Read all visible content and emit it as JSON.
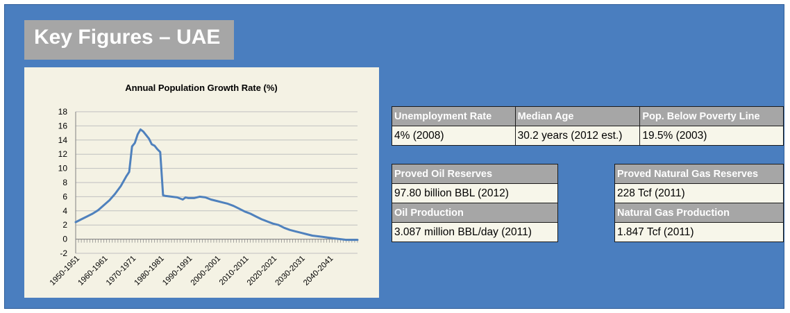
{
  "title": "Key Figures – UAE",
  "chart_data": {
    "type": "line",
    "title": "Annual Population Growth Rate (%)",
    "xlabel": "",
    "ylabel": "",
    "ylim": [
      -2,
      18
    ],
    "yticks": [
      -2,
      0,
      2,
      4,
      6,
      8,
      10,
      12,
      14,
      16,
      18
    ],
    "x_tick_labels": [
      "1950-1951",
      "1960-1961",
      "1970-1971",
      "1980-1981",
      "1990-1991",
      "2000-2001",
      "2010-2011",
      "2020-2021",
      "2030-2031",
      "2040-2041"
    ],
    "grid": true,
    "legend": "none",
    "line_color": "#4f81bd",
    "x_start_year": 1950,
    "x": [
      1950,
      1952,
      1954,
      1956,
      1958,
      1960,
      1962,
      1964,
      1966,
      1968,
      1969,
      1970,
      1971,
      1972,
      1973,
      1974,
      1975,
      1976,
      1977,
      1978,
      1979,
      1980,
      1981,
      1982,
      1984,
      1986,
      1988,
      1989,
      1990,
      1992,
      1994,
      1996,
      1998,
      2000,
      2002,
      2004,
      2006,
      2008,
      2010,
      2012,
      2014,
      2016,
      2018,
      2020,
      2022,
      2024,
      2026,
      2028,
      2030,
      2032,
      2034,
      2036,
      2038,
      2040,
      2042,
      2044,
      2046,
      2048,
      2050
    ],
    "values": [
      2.4,
      2.8,
      3.2,
      3.6,
      4.1,
      4.8,
      5.5,
      6.4,
      7.5,
      8.9,
      9.5,
      13.1,
      13.6,
      14.8,
      15.5,
      15.2,
      14.7,
      14.2,
      13.4,
      13.2,
      12.7,
      12.3,
      6.2,
      6.1,
      6.0,
      5.9,
      5.6,
      5.9,
      5.8,
      5.8,
      6.0,
      5.9,
      5.6,
      5.4,
      5.2,
      5.0,
      4.7,
      4.3,
      3.9,
      3.6,
      3.2,
      2.8,
      2.5,
      2.2,
      2.0,
      1.6,
      1.3,
      1.1,
      0.9,
      0.7,
      0.5,
      0.4,
      0.3,
      0.2,
      0.1,
      0.0,
      -0.1,
      -0.1,
      -0.1
    ]
  },
  "tables": {
    "t1": {
      "headers": [
        "Unemployment Rate",
        "Median Age",
        "Pop. Below Poverty Line"
      ],
      "values": [
        "4% (2008)",
        "30.2 years (2012 est.)",
        "19.5% (2003)"
      ]
    },
    "oil": {
      "reserves_label": "Proved Oil Reserves",
      "reserves_value": "97.80 billion BBL (2012)",
      "production_label": "Oil Production",
      "production_value": "3.087 million BBL/day (2011)"
    },
    "gas": {
      "reserves_label": "Proved Natural Gas Reserves",
      "reserves_value": "228 Tcf (2011)",
      "production_label": "Natural Gas Production",
      "production_value": "1.847 Tcf (2011)"
    }
  }
}
